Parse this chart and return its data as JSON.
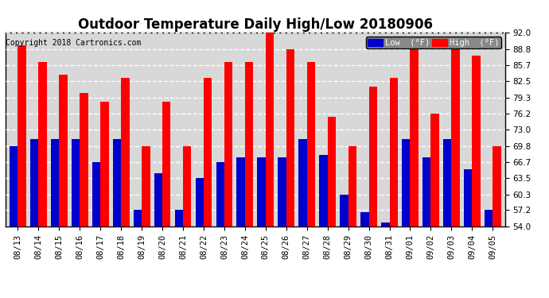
{
  "title": "Outdoor Temperature Daily High/Low 20180906",
  "copyright": "Copyright 2018 Cartronics.com",
  "legend_low": "Low  (°F)",
  "legend_high": "High  (°F)",
  "dates": [
    "08/13",
    "08/14",
    "08/15",
    "08/16",
    "08/17",
    "08/18",
    "08/19",
    "08/20",
    "08/21",
    "08/22",
    "08/23",
    "08/24",
    "08/25",
    "08/26",
    "08/27",
    "08/28",
    "08/29",
    "08/30",
    "08/31",
    "09/01",
    "09/02",
    "09/03",
    "09/04",
    "09/05"
  ],
  "highs": [
    89.5,
    86.2,
    83.8,
    80.2,
    78.5,
    83.2,
    69.8,
    78.5,
    69.8,
    83.2,
    86.2,
    86.2,
    92.0,
    88.8,
    86.2,
    75.5,
    69.8,
    81.5,
    83.2,
    88.8,
    76.2,
    90.5,
    87.5,
    69.8
  ],
  "lows": [
    69.8,
    71.2,
    71.2,
    71.2,
    66.7,
    71.2,
    57.2,
    64.5,
    57.2,
    63.5,
    66.7,
    67.5,
    67.5,
    67.5,
    71.2,
    68.0,
    60.3,
    56.8,
    54.8,
    71.2,
    67.5,
    71.2,
    65.2,
    57.2
  ],
  "ylim_min": 54.0,
  "ylim_max": 92.0,
  "yticks": [
    54.0,
    57.2,
    60.3,
    63.5,
    66.7,
    69.8,
    73.0,
    76.2,
    79.3,
    82.5,
    85.7,
    88.8,
    92.0
  ],
  "high_color": "#ff0000",
  "low_color": "#0000cc",
  "bg_color": "#ffffff",
  "grid_color": "#aaaaaa",
  "title_fontsize": 12,
  "tick_fontsize": 7.5,
  "copyright_fontsize": 7
}
